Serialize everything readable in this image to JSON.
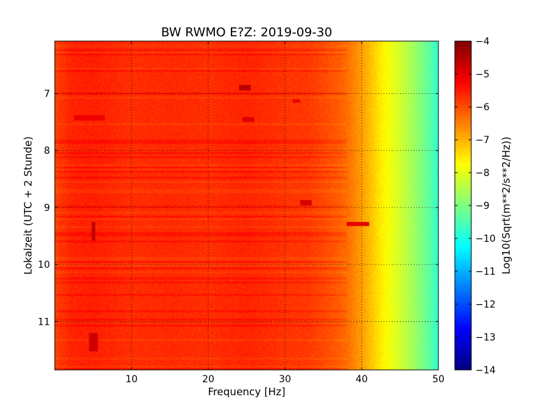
{
  "chart_data": {
    "type": "heatmap",
    "title": "BW RWMO E?Z: 2019-09-30",
    "xlabel": "Frequency [Hz]",
    "ylabel": "Lokalzeit (UTC + 2 Stunde)",
    "colorbar_label": "Log10(Sqrt(m**2/s**2/Hz))",
    "colormap": "jet",
    "xlim": [
      0,
      50
    ],
    "ylim": [
      11.85,
      6.08
    ],
    "x_ticks": [
      10,
      20,
      30,
      40,
      50
    ],
    "x_tick_labels": [
      "10",
      "20",
      "30",
      "40",
      "50"
    ],
    "y_ticks": [
      7,
      8,
      9,
      10,
      11
    ],
    "y_tick_labels": [
      "7",
      "8",
      "9",
      "10",
      "11"
    ],
    "color_range": [
      -14,
      -4
    ],
    "colorbar_ticks": [
      -4,
      -5,
      -6,
      -7,
      -8,
      -9,
      -10,
      -11,
      -12,
      -13,
      -14
    ],
    "colorbar_tick_labels": [
      "−4",
      "−5",
      "−6",
      "−7",
      "−8",
      "−9",
      "−10",
      "−11",
      "−12",
      "−13",
      "−14"
    ],
    "grid": true,
    "spectrum_profile": {
      "frequency_hz": [
        0,
        2,
        5,
        10,
        15,
        20,
        25,
        30,
        33,
        35,
        37,
        38,
        39,
        40,
        41,
        42,
        43,
        44,
        45,
        46,
        47,
        48,
        49,
        50
      ],
      "level": [
        -5.9,
        -5.6,
        -5.55,
        -5.7,
        -5.65,
        -5.7,
        -5.6,
        -5.75,
        -5.8,
        -5.95,
        -6.15,
        -6.3,
        -6.55,
        -6.8,
        -7.1,
        -7.4,
        -7.7,
        -7.95,
        -8.2,
        -8.45,
        -8.75,
        -9.05,
        -9.4,
        -9.8
      ]
    },
    "features": [
      {
        "freq_hz": [
          24,
          25.5
        ],
        "time_h": [
          6.85,
          6.95
        ],
        "level": -4.6
      },
      {
        "freq_hz": [
          24.5,
          26
        ],
        "time_h": [
          7.42,
          7.5
        ],
        "level": -4.9
      },
      {
        "freq_hz": [
          2.5,
          6.5
        ],
        "time_h": [
          7.38,
          7.47
        ],
        "level": -5.1
      },
      {
        "freq_hz": [
          32,
          33.5
        ],
        "time_h": [
          8.87,
          8.97
        ],
        "level": -4.9
      },
      {
        "freq_hz": [
          4.8,
          5.3
        ],
        "time_h": [
          9.25,
          9.58
        ],
        "level": -4.6
      },
      {
        "freq_hz": [
          4.5,
          5.6
        ],
        "time_h": [
          11.2,
          11.52
        ],
        "level": -4.8
      },
      {
        "freq_hz": [
          38,
          41
        ],
        "time_h": [
          9.25,
          9.32
        ],
        "level": -5.0
      },
      {
        "freq_hz": [
          31,
          32
        ],
        "time_h": [
          7.1,
          7.16
        ],
        "level": -5.1
      }
    ]
  }
}
